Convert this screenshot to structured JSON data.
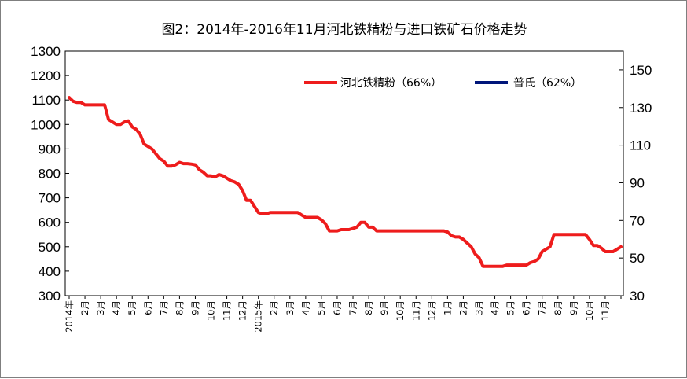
{
  "chart_data": {
    "type": "line",
    "title": "图2：2014年-2016年11月河北铁精粉与进口铁矿石价格走势",
    "legend_position": "top-right",
    "grid": false,
    "y_left": {
      "min": 300,
      "max": 1300,
      "ticks": [
        300,
        400,
        500,
        600,
        700,
        800,
        900,
        1000,
        1100,
        1200,
        1300
      ]
    },
    "y_right": {
      "min": 30,
      "max": 160,
      "ticks": [
        30,
        50,
        70,
        90,
        110,
        130,
        150
      ]
    },
    "x_labels": [
      "2014年",
      "2月",
      "3月",
      "4月",
      "5月",
      "6月",
      "7月",
      "8月",
      "9月",
      "10月",
      "11月",
      "12月",
      "2015年",
      "2月",
      "3月",
      "4月",
      "5月",
      "6月",
      "7月",
      "8月",
      "9月",
      "10月",
      "11月",
      "12月",
      "1月",
      "2月",
      "3月",
      "4月",
      "5月",
      "6月",
      "7月",
      "8月",
      "9月",
      "10月",
      "11月"
    ],
    "x_label_index": [
      0,
      4,
      8,
      12,
      16,
      20,
      24,
      28,
      32,
      36,
      40,
      44,
      48,
      52,
      56,
      60,
      64,
      68,
      72,
      76,
      80,
      84,
      88,
      92,
      96,
      100,
      104,
      108,
      112,
      116,
      120,
      124,
      128,
      132,
      136
    ],
    "x_count": 141,
    "series": [
      {
        "name": "河北铁精粉（66%）",
        "axis": "left",
        "color": "#ee1c1c",
        "values": [
          1110,
          1095,
          1090,
          1090,
          1080,
          1080,
          1080,
          1080,
          1080,
          1080,
          1020,
          1010,
          1000,
          1000,
          1010,
          1015,
          990,
          980,
          960,
          920,
          910,
          900,
          880,
          860,
          850,
          830,
          830,
          835,
          845,
          840,
          840,
          838,
          835,
          815,
          805,
          790,
          790,
          785,
          795,
          790,
          780,
          770,
          765,
          755,
          730,
          690,
          690,
          665,
          640,
          635,
          635,
          640,
          640,
          640,
          640,
          640,
          640,
          640,
          640,
          630,
          620,
          620,
          620,
          620,
          610,
          595,
          565,
          565,
          565,
          570,
          570,
          570,
          575,
          580,
          600,
          600,
          580,
          580,
          565,
          565,
          565,
          565,
          565,
          565,
          565,
          565,
          565,
          565,
          565,
          565,
          565,
          565,
          565,
          565,
          565,
          565,
          560,
          545,
          540,
          540,
          530,
          515,
          500,
          470,
          455,
          420,
          420,
          420,
          420,
          420,
          420,
          425,
          425,
          425,
          425,
          425,
          425,
          435,
          440,
          450,
          480,
          490,
          500,
          550,
          550,
          550,
          550,
          550,
          550,
          550,
          550,
          550,
          530,
          505,
          505,
          495,
          480,
          480,
          480,
          490,
          500
        ],
        "values_note": "as read",
        "legend": "河北铁精粉（66%）"
      },
      {
        "name": "普氏（62%）",
        "axis": "right",
        "color": "#00167a",
        "legend": "普氏（62%）"
      }
    ]
  }
}
